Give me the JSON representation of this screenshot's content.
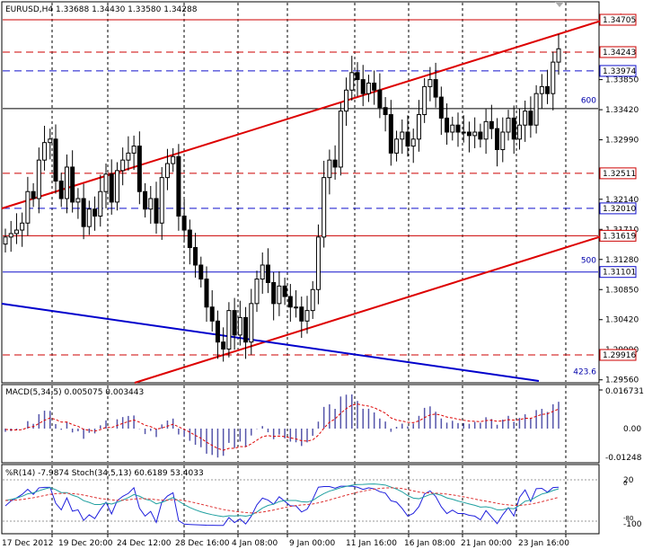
{
  "header": {
    "symbol": "EURUSD,H4",
    "ohlc": "1.33688 1.34430 1.33580 1.34288"
  },
  "price_axis": {
    "labels": [
      {
        "value": 1.3385,
        "text": "1.33850",
        "boxed": false
      },
      {
        "value": 1.3342,
        "text": "1.33420",
        "boxed": false
      },
      {
        "value": 1.3299,
        "text": "1.32990",
        "boxed": false
      },
      {
        "value": 1.3214,
        "text": "1.32140",
        "boxed": false
      },
      {
        "value": 1.3171,
        "text": "1.31710",
        "boxed": false
      },
      {
        "value": 1.3128,
        "text": "1.31280",
        "boxed": false
      },
      {
        "value": 1.3085,
        "text": "1.30850",
        "boxed": false
      },
      {
        "value": 1.3042,
        "text": "1.30420",
        "boxed": false
      },
      {
        "value": 1.2999,
        "text": "1.29990",
        "boxed": false
      },
      {
        "value": 1.2956,
        "text": "1.29560",
        "boxed": false
      }
    ],
    "levels": [
      {
        "value": 1.34705,
        "text": "1.34705",
        "color": "#cc0000",
        "style": "solid"
      },
      {
        "value": 1.34243,
        "text": "1.34243",
        "color": "#cc0000",
        "style": "dash"
      },
      {
        "value": 1.33974,
        "text": "1.33974",
        "color": "#1010cc",
        "style": "dash"
      },
      {
        "value": 1.32511,
        "text": "1.32511",
        "color": "#cc0000",
        "style": "dash"
      },
      {
        "value": 1.3201,
        "text": "1.32010",
        "color": "#1010cc",
        "style": "dash"
      },
      {
        "value": 1.31619,
        "text": "1.31619",
        "color": "#cc0000",
        "style": "solid"
      },
      {
        "value": 1.31101,
        "text": "1.31101",
        "color": "#1010cc",
        "style": "solid"
      },
      {
        "value": 1.29916,
        "text": "1.29916",
        "color": "#cc0000",
        "style": "dash"
      }
    ],
    "fib_labels": [
      {
        "value": 1.3352,
        "text": "600"
      },
      {
        "value": 1.3123,
        "text": "500"
      },
      {
        "value": 1.2964,
        "text": "423.6"
      }
    ]
  },
  "time_axis": {
    "labels": [
      "17 Dec 2012",
      "19 Dec 20:00",
      "24 Dec 12:00",
      "28 Dec 16:00",
      "4 Jan 08:00",
      "9 Jan 00:00",
      "11 Jan 16:00",
      "16 Jan 08:00",
      "21 Jan 00:00",
      "23 Jan 16:00"
    ]
  },
  "macd": {
    "title": "MACD(5,34,5) 0.005075 0.003443",
    "axis_labels": [
      "0.016731",
      "0.00",
      "-0.01248"
    ]
  },
  "stoch": {
    "title": "%R(14) -7.9874  Stoch(34,5,13) 60.6189 53.4033",
    "axis_labels": [
      "20",
      "0",
      "-80",
      "-100"
    ]
  },
  "colors": {
    "up_candle": "#000000",
    "red_line": "#dd0000",
    "blue_line": "#0000cc",
    "macd_hist": "#5555aa",
    "signal": "#dd0000",
    "wpr": "#2020dd",
    "stoch_main": "#20a0a0",
    "stoch_signal": "#dd3030"
  },
  "chart_data": {
    "type": "candlestick",
    "series_close": [
      1.316,
      1.3165,
      1.317,
      1.318,
      1.3225,
      1.3215,
      1.327,
      1.3295,
      1.33,
      1.324,
      1.3215,
      1.326,
      1.321,
      1.3215,
      1.3175,
      1.32,
      1.319,
      1.3225,
      1.325,
      1.321,
      1.3255,
      1.327,
      1.328,
      1.329,
      1.3225,
      1.32,
      1.3215,
      1.318,
      1.3245,
      1.3265,
      1.3275,
      1.319,
      1.317,
      1.3145,
      1.312,
      1.31,
      1.306,
      1.304,
      1.301,
      1.3,
      1.3055,
      1.302,
      1.3045,
      1.301,
      1.3065,
      1.31,
      1.312,
      1.3095,
      1.3065,
      1.309,
      1.3075,
      1.306,
      1.306,
      1.304,
      1.3055,
      1.3085,
      1.316,
      1.3245,
      1.327,
      1.326,
      1.334,
      1.337,
      1.3395,
      1.3385,
      1.3365,
      1.338,
      1.337,
      1.3345,
      1.3335,
      1.328,
      1.33,
      1.331,
      1.329,
      1.33,
      1.3335,
      1.3375,
      1.3385,
      1.336,
      1.333,
      1.331,
      1.332,
      1.331,
      1.331,
      1.3305,
      1.331,
      1.33,
      1.3325,
      1.3315,
      1.3285,
      1.331,
      1.333,
      1.33,
      1.332,
      1.334,
      1.332,
      1.3365,
      1.3375,
      1.3365,
      1.341,
      1.3429
    ]
  }
}
